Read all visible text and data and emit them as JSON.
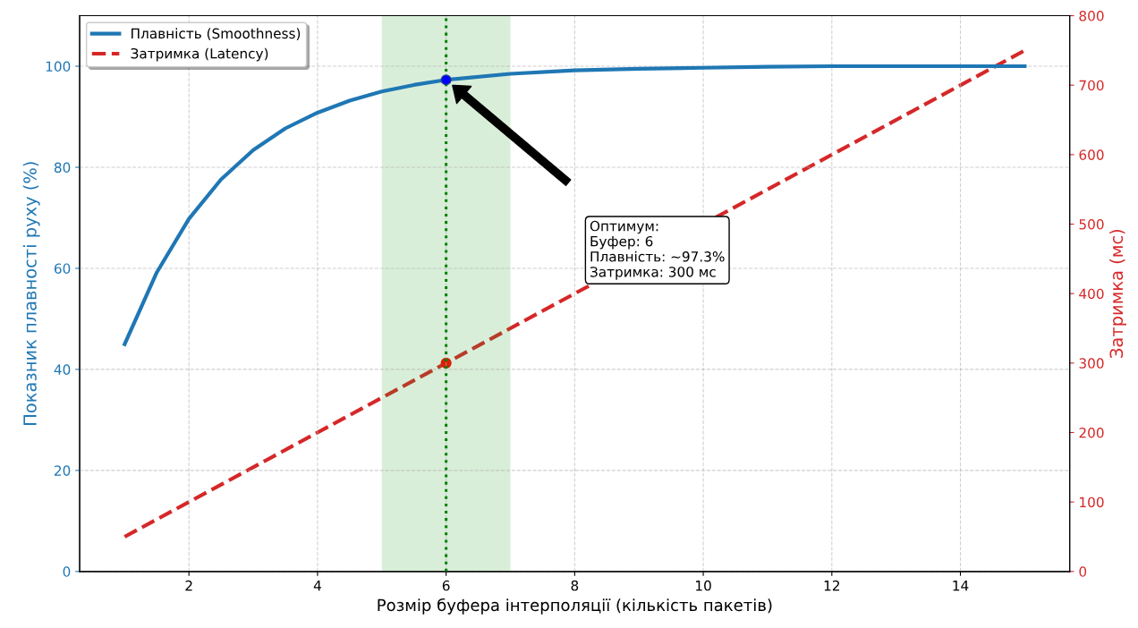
{
  "chart_data": {
    "type": "line",
    "xlabel": "Розмір буфера інтерполяції (кількість пакетів)",
    "ylabel": "Показник плавності руху (%)",
    "y2label": "Затримка (мс)",
    "xlim": [
      0.3,
      15.7
    ],
    "xticks": [
      2,
      4,
      6,
      8,
      10,
      12,
      14
    ],
    "ylim": [
      0,
      110
    ],
    "yticks": [
      0,
      20,
      40,
      60,
      80,
      100
    ],
    "y2lim": [
      0,
      800
    ],
    "y2ticks": [
      0,
      100,
      200,
      300,
      400,
      500,
      600,
      700,
      800
    ],
    "grid": true,
    "legend": "top left",
    "series": [
      {
        "name": "Плавність (Smoothness)",
        "color": "#1f77b4",
        "line_style": "solid",
        "x": [
          1,
          1.5,
          2,
          2.5,
          3,
          3.5,
          4,
          4.5,
          5,
          5.5,
          6,
          7,
          8,
          9,
          10,
          11,
          12,
          13,
          14,
          15
        ],
        "values": [
          45.0,
          59.2,
          69.8,
          77.6,
          83.4,
          87.7,
          90.8,
          93.2,
          95.0,
          96.3,
          97.3,
          98.5,
          99.2,
          99.5,
          99.7,
          99.9,
          100,
          100,
          100,
          100
        ]
      },
      {
        "name": "Затримка (Latency)",
        "axis": "y2",
        "color": "#d62728",
        "line_style": "dashed",
        "x": [
          1,
          15
        ],
        "values": [
          50,
          750
        ]
      },
      {
        "type": "scatter",
        "color": "#0000ff",
        "marker": "circle",
        "x": [
          6
        ],
        "values": [
          97.3
        ]
      },
      {
        "type": "scatter",
        "axis": "y2",
        "color": "#ff0000",
        "marker": "circle",
        "x": [
          6
        ],
        "values": [
          300
        ]
      }
    ],
    "ref_lines": [
      {
        "axis": "x",
        "value": 6,
        "color": "#008000",
        "line_style": "dotted"
      }
    ],
    "bands": [
      {
        "axis": "x",
        "from": 5,
        "to": 7,
        "color": "#2ca02c"
      }
    ],
    "annotations": [
      "Оптимум:\nБуфер: 6\nПлавність: ~97.3%\nЗатримка: 300 мс"
    ]
  }
}
